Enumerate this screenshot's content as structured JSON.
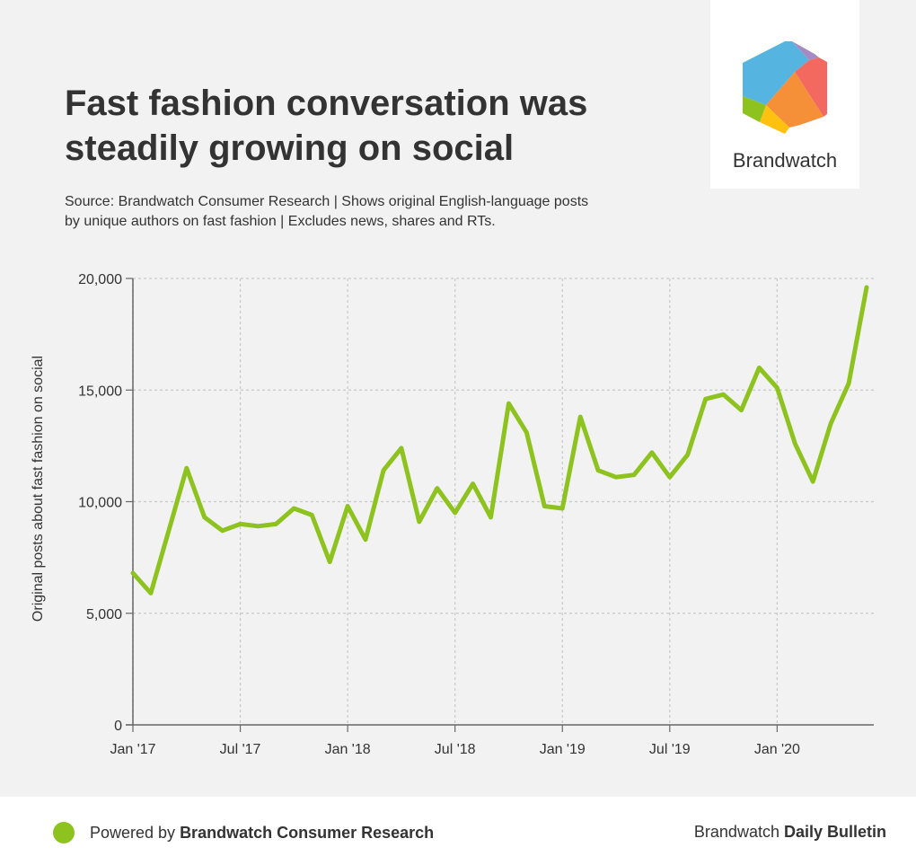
{
  "header": {
    "title_line1": "Fast fashion conversation was",
    "title_line2": "steadily growing on social",
    "subtitle_line1": "Source: Brandwatch Consumer Research | Shows original English-language posts",
    "subtitle_line2": "by unique authors on fast fashion | Excludes news, shares and RTs."
  },
  "logo": {
    "text": "Brandwatch",
    "colors": [
      "#56b4e0",
      "#a58bc4",
      "#f4695f",
      "#f58f38",
      "#fec10f",
      "#8dc21f"
    ]
  },
  "footer": {
    "left_prefix": "Powered by ",
    "left_bold": "Brandwatch Consumer Research",
    "right_prefix": "Brandwatch ",
    "right_bold": "Daily Bulletin",
    "dot_color": "#8dc21f"
  },
  "chart_data": {
    "type": "line",
    "title": "",
    "xlabel": "",
    "ylabel": "Original posts about fast fashion on social",
    "ylim": [
      0,
      20000
    ],
    "yticks": [
      0,
      5000,
      10000,
      15000,
      20000
    ],
    "ytick_labels": [
      "0",
      "5,000",
      "10,000",
      "15,000",
      "20,000"
    ],
    "xtick_labels": [
      "Jan '17",
      "Jul '17",
      "Jan '18",
      "Jul '18",
      "Jan '19",
      "Jul '19",
      "Jan '20"
    ],
    "xtick_months": [
      "2017-01",
      "2017-07",
      "2018-01",
      "2018-07",
      "2019-01",
      "2019-07",
      "2020-01"
    ],
    "grid": true,
    "line_color": "#8dc21f",
    "series": [
      {
        "x": [
          "2017-01",
          "2017-02",
          "2017-03",
          "2017-04",
          "2017-05",
          "2017-06",
          "2017-07",
          "2017-08",
          "2017-09",
          "2017-10",
          "2017-11",
          "2017-12",
          "2018-01",
          "2018-02",
          "2018-03",
          "2018-04",
          "2018-05",
          "2018-06",
          "2018-07",
          "2018-08",
          "2018-09",
          "2018-10",
          "2018-11",
          "2018-12",
          "2019-01",
          "2019-02",
          "2019-03",
          "2019-04",
          "2019-05",
          "2019-06",
          "2019-07",
          "2019-08",
          "2019-09",
          "2019-10",
          "2019-11",
          "2019-12",
          "2020-01",
          "2020-02",
          "2020-03",
          "2020-04",
          "2020-05",
          "2020-06"
        ],
        "values": [
          6800,
          5900,
          8700,
          11500,
          9300,
          8700,
          9000,
          8900,
          9000,
          9700,
          9400,
          7300,
          9800,
          8300,
          11400,
          12400,
          9100,
          10600,
          9500,
          10800,
          9300,
          14400,
          13100,
          9800,
          9700,
          13800,
          11400,
          11100,
          11200,
          12200,
          11100,
          12100,
          14600,
          14800,
          14100,
          16000,
          15100,
          12600,
          10900,
          13500,
          15300,
          19600
        ]
      }
    ]
  }
}
